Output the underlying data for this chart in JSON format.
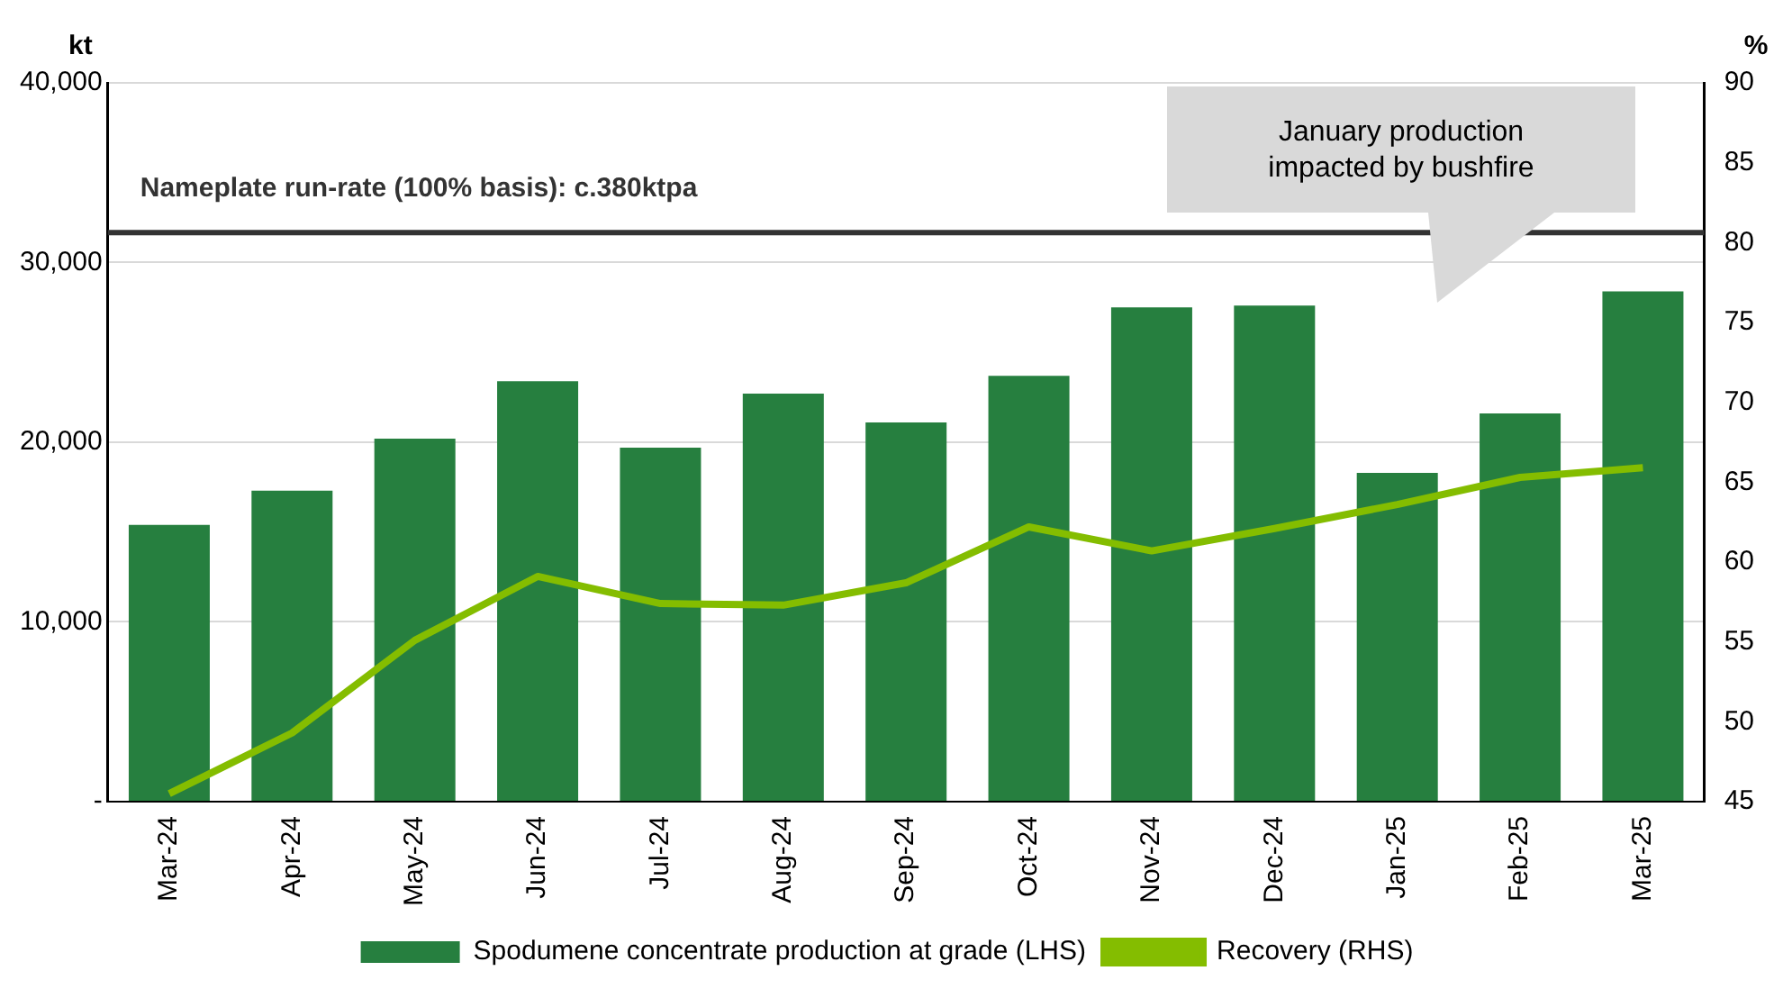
{
  "chart_data": {
    "type": "bar",
    "ylabel": "kt",
    "y2label": "%",
    "categories": [
      "Mar-24",
      "Apr-24",
      "May-24",
      "Jun-24",
      "Jul-24",
      "Aug-24",
      "Sep-24",
      "Oct-24",
      "Nov-24",
      "Dec-24",
      "Jan-25",
      "Feb-25",
      "Mar-25"
    ],
    "series": [
      {
        "name": "Spodumene concentrate production at grade (LHS)",
        "color": "#267f3f",
        "values": [
          15400,
          17300,
          20200,
          23400,
          19700,
          22700,
          21100,
          23700,
          27500,
          27600,
          18300,
          21600,
          28400
        ]
      },
      {
        "name": "Recovery (RHS)",
        "type": "line",
        "axis": "y2",
        "color": "#84bd00",
        "values": [
          45.5,
          49.3,
          55.1,
          59.1,
          57.4,
          57.3,
          58.7,
          62.2,
          60.7,
          62.1,
          63.6,
          65.3,
          65.9
        ]
      }
    ],
    "ylim": [
      0,
      40000
    ],
    "yticks": [
      {
        "value": 0,
        "label": "-"
      },
      {
        "value": 10000,
        "label": "10,000"
      },
      {
        "value": 20000,
        "label": "20,000"
      },
      {
        "value": 30000,
        "label": "30,000"
      },
      {
        "value": 40000,
        "label": "40,000"
      }
    ],
    "y2lim": [
      45,
      90
    ],
    "y2ticks": [
      45,
      50,
      55,
      60,
      65,
      70,
      75,
      80,
      85,
      90
    ],
    "ref_lines": [
      {
        "axis": "y",
        "value": 31667,
        "label": "Nameplate run-rate (100% basis): c.380ktpa",
        "color": "#333333"
      }
    ],
    "annotations": [
      "January production impacted by bushfire"
    ],
    "grid": "y",
    "legend": "bottom",
    "marker": "none",
    "line_style": "solid"
  }
}
